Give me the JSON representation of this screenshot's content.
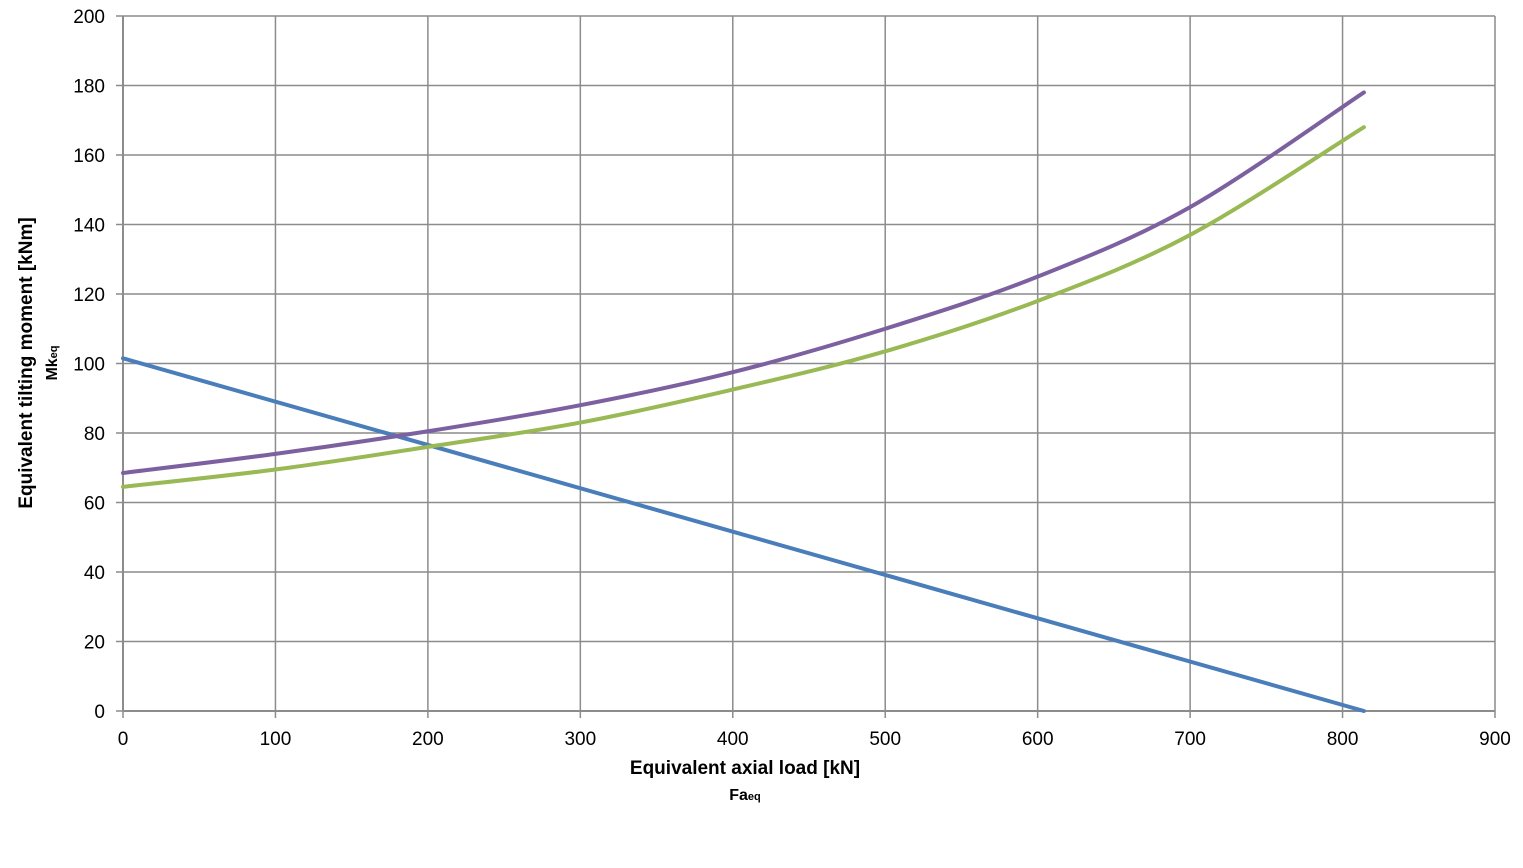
{
  "chart_data": {
    "type": "line",
    "xlabel": "Equivalent axial load [kN]",
    "xlabel_symbol": "Fa",
    "xlabel_symbol_sub": "eq",
    "ylabel": "Equivalent tilting moment [kNm]",
    "ylabel_symbol": "Mk",
    "ylabel_symbol_sub": "eq",
    "xlim": [
      0,
      900
    ],
    "ylim": [
      0,
      200
    ],
    "xticks": [
      0,
      100,
      200,
      300,
      400,
      500,
      600,
      700,
      800,
      900
    ],
    "yticks": [
      0,
      20,
      40,
      60,
      80,
      100,
      120,
      140,
      160,
      180,
      200
    ],
    "grid": true,
    "series": [
      {
        "name": "blue",
        "color": "#4a7ebb",
        "x": [
          0,
          814
        ],
        "y": [
          101.5,
          0
        ]
      },
      {
        "name": "purple",
        "color": "#7d60a0",
        "x": [
          0,
          100,
          200,
          300,
          400,
          500,
          600,
          700,
          814
        ],
        "y": [
          68.5,
          74,
          80.5,
          88,
          97.5,
          110,
          125,
          145,
          178
        ]
      },
      {
        "name": "green",
        "color": "#98b954",
        "x": [
          0,
          100,
          200,
          300,
          400,
          500,
          600,
          700,
          814
        ],
        "y": [
          64.5,
          69.5,
          76,
          83,
          92.5,
          103.5,
          118,
          137,
          168
        ]
      }
    ]
  }
}
